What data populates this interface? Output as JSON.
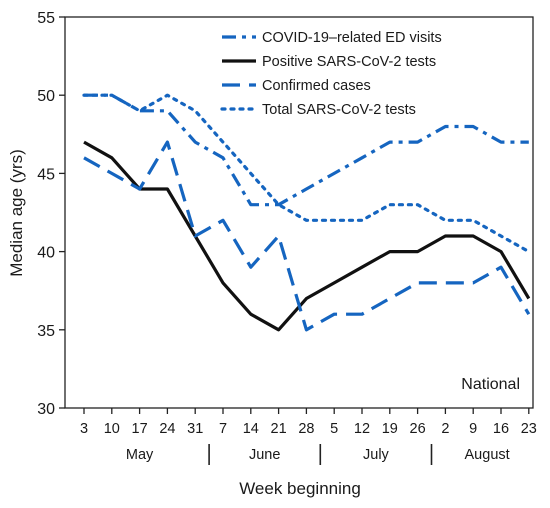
{
  "chart_data": {
    "type": "line",
    "title": "",
    "ylabel": "Median age (yrs)",
    "xlabel": "Week beginning",
    "annotation": "National",
    "ylim": [
      30,
      55
    ],
    "yticks": [
      30,
      35,
      40,
      45,
      50,
      55
    ],
    "x": [
      "3",
      "10",
      "17",
      "24",
      "31",
      "7",
      "14",
      "21",
      "28",
      "5",
      "12",
      "19",
      "26",
      "2",
      "9",
      "16",
      "23"
    ],
    "months": [
      {
        "label": "May",
        "start": 0,
        "end": 4
      },
      {
        "label": "June",
        "start": 5,
        "end": 8
      },
      {
        "label": "July",
        "start": 9,
        "end": 12
      },
      {
        "label": "August",
        "start": 13,
        "end": 16
      }
    ],
    "grid": false,
    "legend_position": "top-right",
    "colors": {
      "blue": "#1565c0",
      "black": "#111111"
    },
    "series": [
      {
        "name": "COVID-19–related ED visits",
        "style": "dash-dot",
        "color": "#1565c0",
        "values": [
          50,
          50,
          49,
          49,
          47,
          46,
          43,
          43,
          44,
          45,
          46,
          47,
          47,
          48,
          48,
          47,
          47
        ]
      },
      {
        "name": "Positive SARS-CoV-2 tests",
        "style": "solid",
        "color": "#111111",
        "values": [
          47,
          46,
          44,
          44,
          41,
          38,
          36,
          35,
          37,
          38,
          39,
          40,
          40,
          41,
          41,
          40,
          37
        ]
      },
      {
        "name": "Confirmed cases",
        "style": "dashed",
        "color": "#1565c0",
        "values": [
          46,
          45,
          44,
          47,
          41,
          42,
          39,
          41,
          35,
          36,
          36,
          37,
          38,
          38,
          38,
          39,
          36
        ]
      },
      {
        "name": "Total SARS-CoV-2 tests",
        "style": "dotted",
        "color": "#1565c0",
        "values": [
          50,
          50,
          49,
          50,
          49,
          47,
          45,
          43,
          42,
          42,
          42,
          43,
          43,
          42,
          42,
          41,
          40
        ]
      }
    ]
  }
}
